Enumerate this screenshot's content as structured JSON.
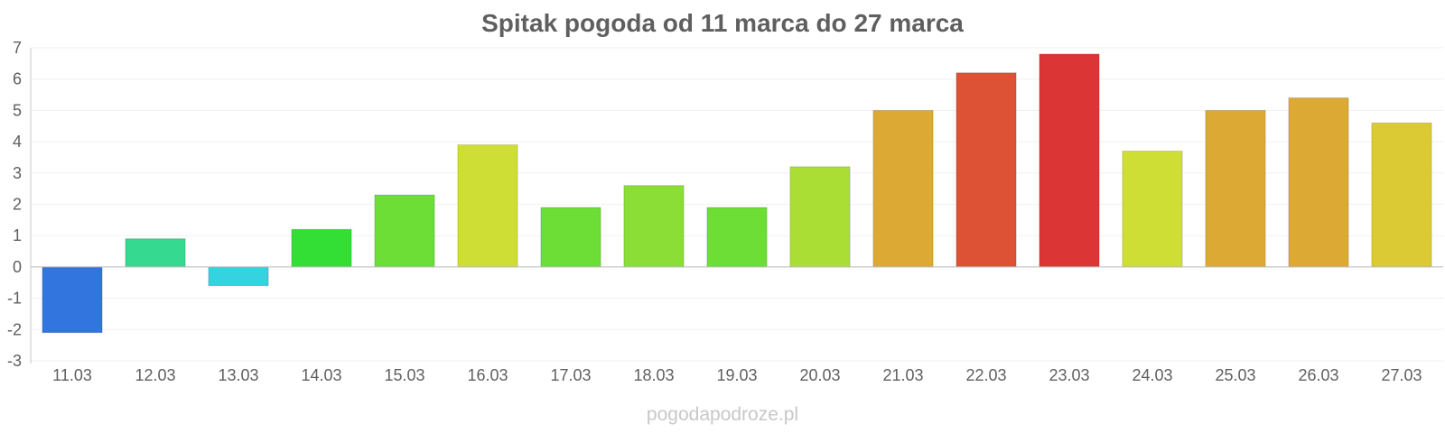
{
  "chart_data": {
    "type": "bar",
    "title": "Spitak pogoda od 11 marca do 27 marca",
    "categories": [
      "11.03",
      "12.03",
      "13.03",
      "14.03",
      "15.03",
      "16.03",
      "17.03",
      "18.03",
      "19.03",
      "20.03",
      "21.03",
      "22.03",
      "23.03",
      "24.03",
      "25.03",
      "26.03",
      "27.03"
    ],
    "values": [
      -2.1,
      0.9,
      -0.6,
      1.2,
      2.3,
      3.9,
      1.9,
      2.6,
      1.9,
      3.2,
      5.0,
      6.2,
      6.8,
      3.7,
      5.0,
      5.4,
      4.6
    ],
    "colors": [
      "#3375de",
      "#35d98f",
      "#35d2df",
      "#33de35",
      "#6cde35",
      "#cfde35",
      "#6cde35",
      "#8ade35",
      "#6cde35",
      "#abde35",
      "#dda935",
      "#dd5235",
      "#dc3535",
      "#cfde35",
      "#dda935",
      "#dda935",
      "#dcca35"
    ],
    "ylim": [
      -3,
      7
    ],
    "yticks": [
      "-3",
      "-2",
      "-1",
      "0",
      "1",
      "2",
      "3",
      "4",
      "5",
      "6",
      "7"
    ],
    "grid": true,
    "legend": "none"
  },
  "watermark": "pogodapodroze.pl"
}
